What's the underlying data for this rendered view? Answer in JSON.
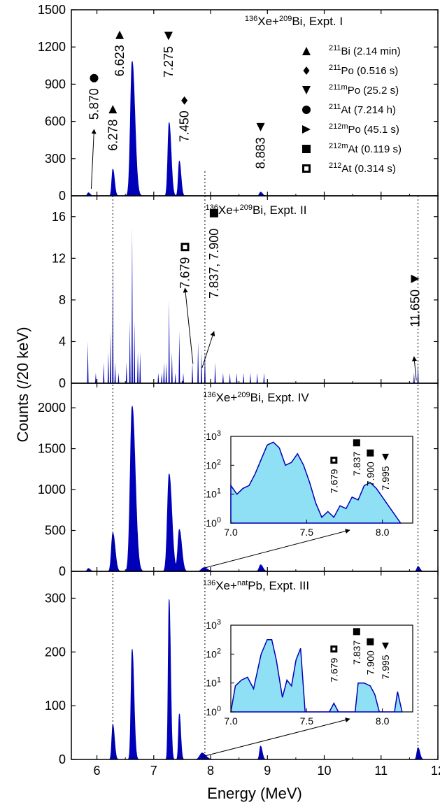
{
  "figure": {
    "xlabel": "Energy (MeV)",
    "ylabel": "Counts (/20 keV)",
    "x_ticks": [
      "6",
      "7",
      "8",
      "9",
      "10",
      "11",
      "12"
    ],
    "colors": {
      "fill": "#0000b8",
      "inset_fill": "#8fe0f4",
      "inset_line": "#0000b8"
    },
    "guide_lines_x": [
      6.28,
      7.9,
      11.65
    ]
  },
  "legend": [
    {
      "marker": "up-triangle",
      "iso": "211",
      "name": "Bi",
      "half": " (2.14 min)"
    },
    {
      "marker": "diamond",
      "iso": "211",
      "name": "Po",
      "half": " (0.516 s)"
    },
    {
      "marker": "down-triangle",
      "iso": "211m",
      "name": "Po",
      "half": " (25.2 s)"
    },
    {
      "marker": "circle",
      "iso": "211",
      "name": "At",
      "half": " (7.214 h)"
    },
    {
      "marker": "right-triangle",
      "iso": "212m",
      "name": "Po",
      "half": " (45.1 s)"
    },
    {
      "marker": "filled-square",
      "iso": "212m",
      "name": "At",
      "half": " (0.119 s)"
    },
    {
      "marker": "open-square",
      "iso": "212",
      "name": "At",
      "half": " (0.314 s)"
    }
  ],
  "chart_data": [
    {
      "type": "area",
      "title": {
        "proj_mass": "136",
        "proj": "Xe+",
        "targ_mass": "209",
        "targ": "Bi, Expt. I"
      },
      "xlim": [
        5.55,
        12
      ],
      "ylim": [
        0,
        1500
      ],
      "y_ticks": [
        0,
        300,
        600,
        900,
        1200,
        1500
      ],
      "peaks": [
        {
          "x": 5.85,
          "y": 25,
          "w": 0.018
        },
        {
          "x": 6.28,
          "y": 215,
          "w": 0.018
        },
        {
          "x": 6.62,
          "y": 1085,
          "w": 0.03
        },
        {
          "x": 7.27,
          "y": 590,
          "w": 0.022
        },
        {
          "x": 7.45,
          "y": 280,
          "w": 0.018
        },
        {
          "x": 8.88,
          "y": 30,
          "w": 0.02
        }
      ],
      "labels": [
        {
          "text": "5.870",
          "x": 5.95,
          "y": 740,
          "marker": "circle"
        },
        {
          "text": "6.278",
          "x": 6.28,
          "y": 490,
          "marker": "up-triangle"
        },
        {
          "text": "6.623",
          "x": 6.4,
          "y": 1090,
          "marker": "up-triangle"
        },
        {
          "text": "7.275",
          "x": 7.26,
          "y": 1080,
          "marker": "down-triangle"
        },
        {
          "text": "7.450",
          "x": 7.54,
          "y": 560,
          "marker": "diamond"
        },
        {
          "text": "8.883",
          "x": 8.88,
          "y": 345,
          "marker": "down-triangle"
        }
      ]
    },
    {
      "type": "area",
      "title": {
        "proj_mass": "136",
        "proj": "Xe+",
        "targ_mass": "209",
        "targ": "Bi, Expt. II"
      },
      "xlim": [
        5.55,
        12
      ],
      "ylim": [
        0,
        18
      ],
      "y_ticks": [
        0,
        4,
        8,
        12,
        16
      ],
      "bars": [
        [
          5.84,
          4
        ],
        [
          5.98,
          1
        ],
        [
          6.12,
          2
        ],
        [
          6.2,
          3
        ],
        [
          6.24,
          5
        ],
        [
          6.28,
          12
        ],
        [
          6.32,
          2
        ],
        [
          6.38,
          1
        ],
        [
          6.52,
          2
        ],
        [
          6.58,
          6
        ],
        [
          6.62,
          15
        ],
        [
          6.66,
          6
        ],
        [
          6.72,
          3
        ],
        [
          6.76,
          3
        ],
        [
          7.08,
          1
        ],
        [
          7.14,
          1
        ],
        [
          7.18,
          2
        ],
        [
          7.22,
          2
        ],
        [
          7.27,
          8
        ],
        [
          7.32,
          3
        ],
        [
          7.38,
          1
        ],
        [
          7.45,
          5
        ],
        [
          7.52,
          1
        ],
        [
          7.68,
          2
        ],
        [
          7.78,
          4
        ],
        [
          7.84,
          3
        ],
        [
          7.9,
          3
        ],
        [
          8.08,
          2
        ],
        [
          8.22,
          1
        ],
        [
          8.34,
          1
        ],
        [
          8.46,
          1
        ],
        [
          8.58,
          1
        ],
        [
          8.7,
          1
        ],
        [
          8.82,
          1
        ],
        [
          8.94,
          1
        ],
        [
          11.58,
          1
        ],
        [
          11.65,
          2
        ]
      ],
      "labels": [
        {
          "text": "7.679",
          "x": 7.55,
          "y": 10.6,
          "marker": "open-square"
        },
        {
          "text": "7.837, 7.900",
          "x": 8.06,
          "y": 11.5,
          "marker": "filled-square"
        },
        {
          "text": "11.650",
          "x": 11.6,
          "y": 7.2,
          "marker": "right-triangle"
        }
      ]
    },
    {
      "type": "area",
      "title": {
        "proj_mass": "136",
        "proj": "Xe+",
        "targ_mass": "209",
        "targ": "Bi, Expt. IV"
      },
      "xlim": [
        5.55,
        12
      ],
      "ylim": [
        0,
        2300
      ],
      "y_ticks": [
        0,
        500,
        1000,
        1500,
        2000
      ],
      "peaks": [
        {
          "x": 5.85,
          "y": 35,
          "w": 0.02
        },
        {
          "x": 6.28,
          "y": 470,
          "w": 0.025
        },
        {
          "x": 6.62,
          "y": 2020,
          "w": 0.034
        },
        {
          "x": 7.27,
          "y": 1190,
          "w": 0.03
        },
        {
          "x": 7.45,
          "y": 510,
          "w": 0.026
        },
        {
          "x": 7.88,
          "y": 45,
          "w": 0.04
        },
        {
          "x": 8.88,
          "y": 80,
          "w": 0.025
        },
        {
          "x": 11.65,
          "y": 60,
          "w": 0.02
        }
      ],
      "inset": {
        "type": "area",
        "scale": "log",
        "xlim": [
          7.0,
          8.2
        ],
        "ylim": [
          1,
          1000
        ],
        "x_ticks": [
          "7.0",
          "7.5",
          "8.0"
        ],
        "y_exps": [
          "0",
          "1",
          "2",
          "3"
        ],
        "log_points": [
          [
            7.0,
            1.3
          ],
          [
            7.04,
            1.0
          ],
          [
            7.08,
            1.2
          ],
          [
            7.12,
            1.3
          ],
          [
            7.16,
            1.7
          ],
          [
            7.2,
            2.2
          ],
          [
            7.24,
            2.7
          ],
          [
            7.28,
            2.8
          ],
          [
            7.32,
            2.6
          ],
          [
            7.36,
            2.0
          ],
          [
            7.4,
            2.1
          ],
          [
            7.44,
            2.4
          ],
          [
            7.48,
            2.0
          ],
          [
            7.52,
            1.4
          ],
          [
            7.56,
            0.7
          ],
          [
            7.6,
            0.2
          ],
          [
            7.64,
            0.4
          ],
          [
            7.68,
            0.2
          ],
          [
            7.72,
            0.6
          ],
          [
            7.76,
            0.5
          ],
          [
            7.8,
            0.9
          ],
          [
            7.84,
            0.8
          ],
          [
            7.88,
            1.3
          ],
          [
            7.92,
            1.4
          ],
          [
            7.96,
            1.2
          ],
          [
            8.0,
            0.9
          ],
          [
            8.04,
            0.6
          ],
          [
            8.08,
            0.3
          ],
          [
            8.12,
            0.0
          ]
        ],
        "labels": [
          {
            "text": "7.679",
            "x": 7.68,
            "y": 1.45,
            "marker": "open-square"
          },
          {
            "text": "7.837",
            "x": 7.83,
            "y": 2.05,
            "marker": "filled-square"
          },
          {
            "text": "7.900",
            "x": 7.92,
            "y": 1.7,
            "marker": "filled-square"
          },
          {
            "text": "7.995",
            "x": 8.02,
            "y": 1.55,
            "marker": "down-triangle"
          }
        ]
      }
    },
    {
      "type": "area",
      "title": {
        "proj_mass": "136",
        "proj": "Xe+",
        "targ_mass": "nat",
        "targ": "Pb, Expt. III"
      },
      "xlim": [
        5.55,
        12
      ],
      "ylim": [
        0,
        350
      ],
      "y_ticks": [
        0,
        100,
        200,
        300
      ],
      "peaks": [
        {
          "x": 6.28,
          "y": 65,
          "w": 0.018
        },
        {
          "x": 6.62,
          "y": 205,
          "w": 0.02
        },
        {
          "x": 7.27,
          "y": 298,
          "w": 0.016
        },
        {
          "x": 7.45,
          "y": 85,
          "w": 0.015
        },
        {
          "x": 7.85,
          "y": 12,
          "w": 0.04
        },
        {
          "x": 8.88,
          "y": 25,
          "w": 0.018
        },
        {
          "x": 11.65,
          "y": 22,
          "w": 0.02
        }
      ],
      "inset": {
        "type": "area",
        "scale": "log",
        "xlim": [
          7.0,
          8.2
        ],
        "ylim": [
          1,
          1000
        ],
        "x_ticks": [
          "7.0",
          "7.5",
          "8.0"
        ],
        "y_exps": [
          "0",
          "1",
          "2",
          "3"
        ],
        "log_points": [
          [
            7.0,
            0.0
          ],
          [
            7.03,
            0.9
          ],
          [
            7.07,
            1.1
          ],
          [
            7.11,
            1.2
          ],
          [
            7.15,
            0.8
          ],
          [
            7.2,
            2.0
          ],
          [
            7.24,
            2.5
          ],
          [
            7.27,
            2.5
          ],
          [
            7.3,
            1.8
          ],
          [
            7.34,
            0.5
          ],
          [
            7.37,
            1.1
          ],
          [
            7.4,
            0.9
          ],
          [
            7.43,
            1.8
          ],
          [
            7.46,
            2.2
          ],
          [
            7.49,
            0.0
          ],
          [
            7.65,
            0.0
          ],
          [
            7.68,
            0.3
          ],
          [
            7.71,
            0.0
          ],
          [
            7.82,
            0.0
          ],
          [
            7.84,
            1.0
          ],
          [
            7.88,
            1.0
          ],
          [
            7.92,
            0.9
          ],
          [
            7.95,
            0.6
          ],
          [
            7.98,
            0.0
          ],
          [
            8.08,
            0.0
          ],
          [
            8.1,
            0.7
          ],
          [
            8.13,
            0.0
          ]
        ],
        "labels": [
          {
            "text": "7.679",
            "x": 7.68,
            "y": 1.45,
            "marker": "open-square"
          },
          {
            "text": "7.837",
            "x": 7.83,
            "y": 2.05,
            "marker": "filled-square"
          },
          {
            "text": "7.900",
            "x": 7.92,
            "y": 1.7,
            "marker": "filled-square"
          },
          {
            "text": "7.995",
            "x": 8.02,
            "y": 1.55,
            "marker": "down-triangle"
          }
        ]
      }
    }
  ]
}
